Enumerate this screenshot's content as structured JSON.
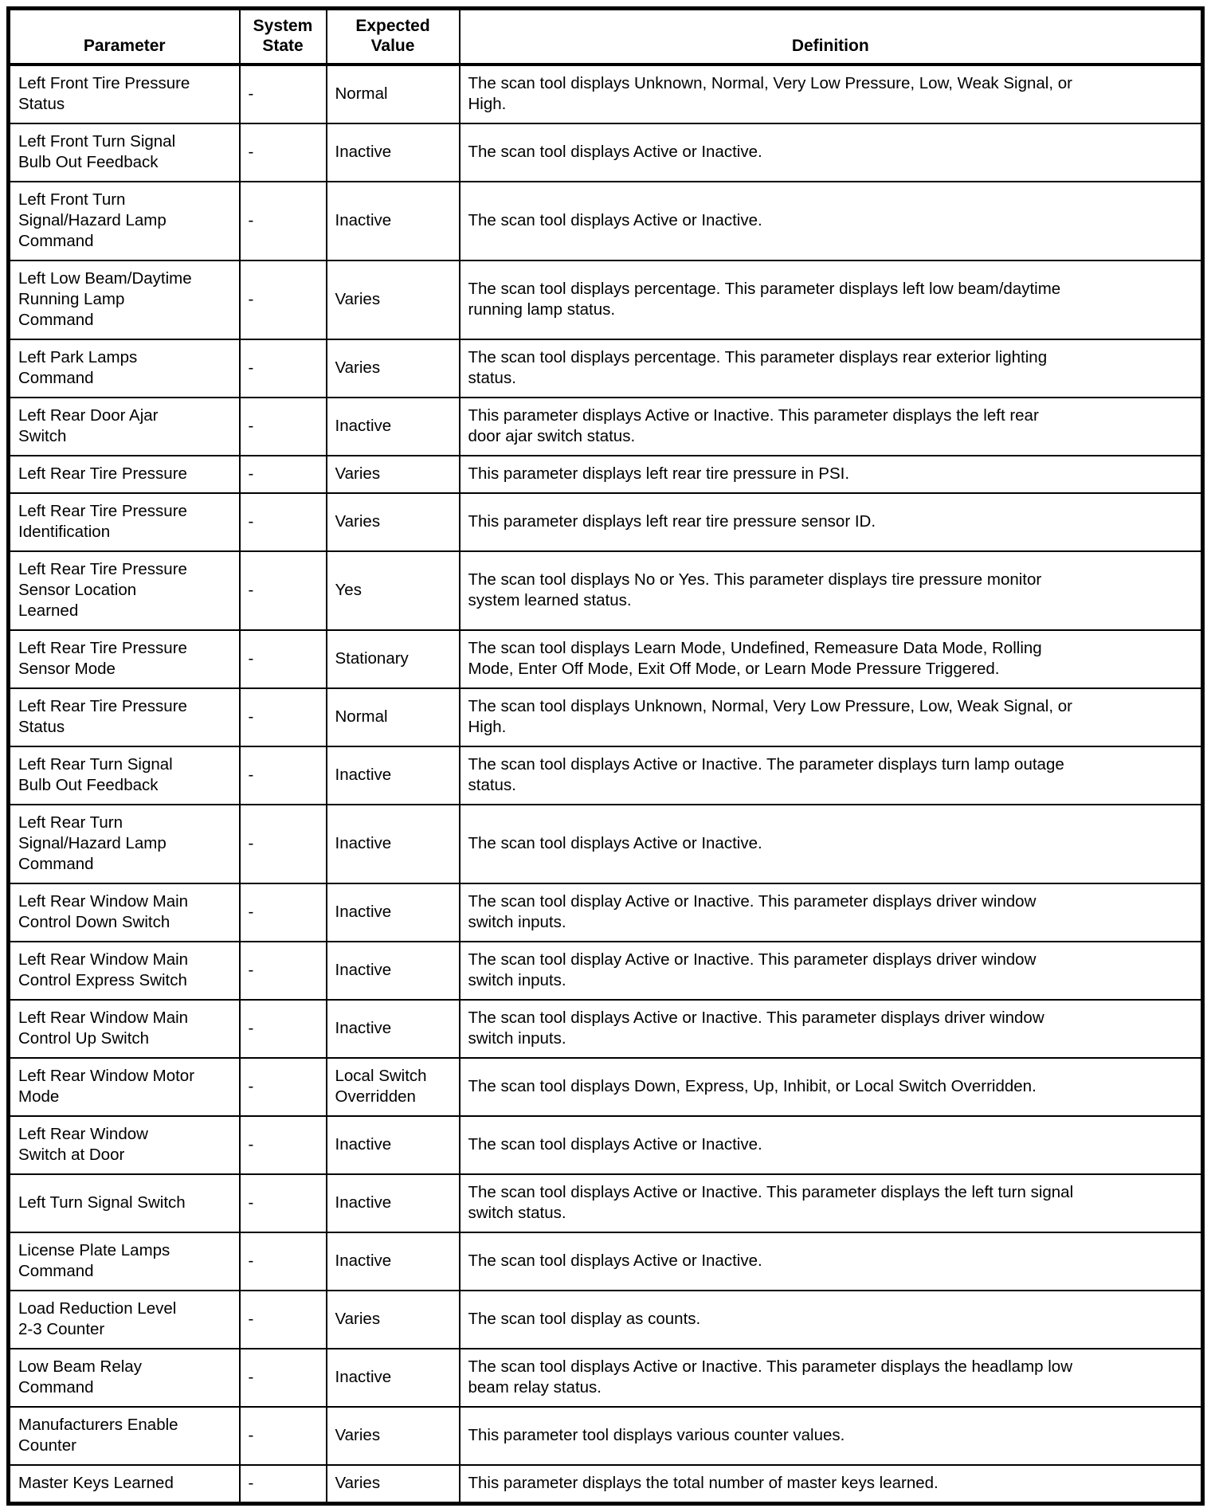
{
  "table": {
    "columns": [
      {
        "key": "parameter",
        "label": "Parameter"
      },
      {
        "key": "system_state",
        "label": "System\nState"
      },
      {
        "key": "expected_value",
        "label": "Expected\nValue"
      },
      {
        "key": "definition",
        "label": "Definition"
      }
    ],
    "rows": [
      {
        "parameter": "Left Front Tire Pressure\nStatus",
        "system_state": "-",
        "expected_value": "Normal",
        "definition": "The scan tool displays Unknown, Normal, Very Low Pressure, Low, Weak Signal, or\nHigh."
      },
      {
        "parameter": "Left Front Turn Signal\nBulb Out Feedback",
        "system_state": "-",
        "expected_value": "Inactive",
        "definition": "The scan tool displays Active or Inactive."
      },
      {
        "parameter": "Left Front Turn\nSignal/Hazard Lamp\nCommand",
        "system_state": "-",
        "expected_value": "Inactive",
        "definition": "The scan tool displays Active or Inactive."
      },
      {
        "parameter": "Left Low Beam/Daytime\nRunning Lamp\nCommand",
        "system_state": "-",
        "expected_value": "Varies",
        "definition": "The scan tool displays percentage. This parameter displays left low beam/daytime\nrunning lamp status."
      },
      {
        "parameter": "Left Park Lamps\nCommand",
        "system_state": "-",
        "expected_value": "Varies",
        "definition": "The scan tool displays percentage. This parameter displays rear exterior lighting\nstatus."
      },
      {
        "parameter": "Left Rear Door Ajar\nSwitch",
        "system_state": "-",
        "expected_value": "Inactive",
        "definition": "This parameter displays Active or Inactive. This parameter displays the left rear\ndoor ajar switch status."
      },
      {
        "parameter": "Left Rear Tire Pressure",
        "system_state": "-",
        "expected_value": "Varies",
        "definition": "This parameter displays left rear tire pressure in PSI."
      },
      {
        "parameter": "Left Rear Tire Pressure\nIdentification",
        "system_state": "-",
        "expected_value": "Varies",
        "definition": "This parameter displays left rear tire pressure sensor ID."
      },
      {
        "parameter": "Left Rear Tire Pressure\nSensor Location\nLearned",
        "system_state": "-",
        "expected_value": "Yes",
        "definition": "The scan tool displays No or Yes. This parameter displays tire pressure monitor\nsystem learned status."
      },
      {
        "parameter": "Left Rear Tire Pressure\nSensor Mode",
        "system_state": "-",
        "expected_value": "Stationary",
        "definition": "The scan tool displays Learn Mode, Undefined, Remeasure Data Mode, Rolling\nMode, Enter Off Mode, Exit Off Mode, or Learn Mode Pressure Triggered."
      },
      {
        "parameter": "Left Rear Tire Pressure\nStatus",
        "system_state": "-",
        "expected_value": "Normal",
        "definition": "The scan tool displays Unknown, Normal, Very Low Pressure, Low, Weak Signal, or\nHigh."
      },
      {
        "parameter": "Left Rear Turn Signal\nBulb Out Feedback",
        "system_state": "-",
        "expected_value": "Inactive",
        "definition": "The scan tool displays Active or Inactive. The parameter displays turn lamp outage\nstatus."
      },
      {
        "parameter": "Left Rear Turn\nSignal/Hazard Lamp\nCommand",
        "system_state": "-",
        "expected_value": "Inactive",
        "definition": "The scan tool displays Active or Inactive."
      },
      {
        "parameter": "Left Rear Window Main\nControl Down Switch",
        "system_state": "-",
        "expected_value": "Inactive",
        "definition": "The scan tool display Active or Inactive. This parameter displays driver window\nswitch inputs."
      },
      {
        "parameter": "Left Rear Window Main\nControl Express Switch",
        "system_state": "-",
        "expected_value": "Inactive",
        "definition": "The scan tool display Active or Inactive. This parameter displays driver window\nswitch inputs."
      },
      {
        "parameter": "Left Rear Window Main\nControl Up Switch",
        "system_state": "-",
        "expected_value": "Inactive",
        "definition": "The scan tool displays Active or Inactive. This parameter displays driver window\nswitch inputs."
      },
      {
        "parameter": "Left Rear Window Motor\nMode",
        "system_state": "-",
        "expected_value": "Local Switch\nOverridden",
        "definition": "The scan tool displays Down, Express, Up, Inhibit, or Local Switch Overridden."
      },
      {
        "parameter": "Left Rear Window\nSwitch at Door",
        "system_state": "-",
        "expected_value": "Inactive",
        "definition": "The scan tool displays Active or Inactive."
      },
      {
        "parameter": "Left Turn Signal Switch",
        "system_state": "-",
        "expected_value": "Inactive",
        "definition": "The scan tool displays Active or Inactive. This parameter displays the left turn signal\nswitch status."
      },
      {
        "parameter": "License Plate Lamps\nCommand",
        "system_state": "-",
        "expected_value": "Inactive",
        "definition": "The scan tool displays Active or Inactive."
      },
      {
        "parameter": "Load Reduction Level\n2-3 Counter",
        "system_state": "-",
        "expected_value": "Varies",
        "definition": "The scan tool display as counts."
      },
      {
        "parameter": "Low Beam Relay\nCommand",
        "system_state": "-",
        "expected_value": "Inactive",
        "definition": "The scan tool displays Active or Inactive. This parameter displays the headlamp low\nbeam relay status."
      },
      {
        "parameter": "Manufacturers Enable\nCounter",
        "system_state": "-",
        "expected_value": "Varies",
        "definition": "This parameter tool displays various counter values."
      },
      {
        "parameter": "Master Keys Learned",
        "system_state": "-",
        "expected_value": "Varies",
        "definition": "This parameter displays the total number of master keys learned."
      }
    ]
  }
}
